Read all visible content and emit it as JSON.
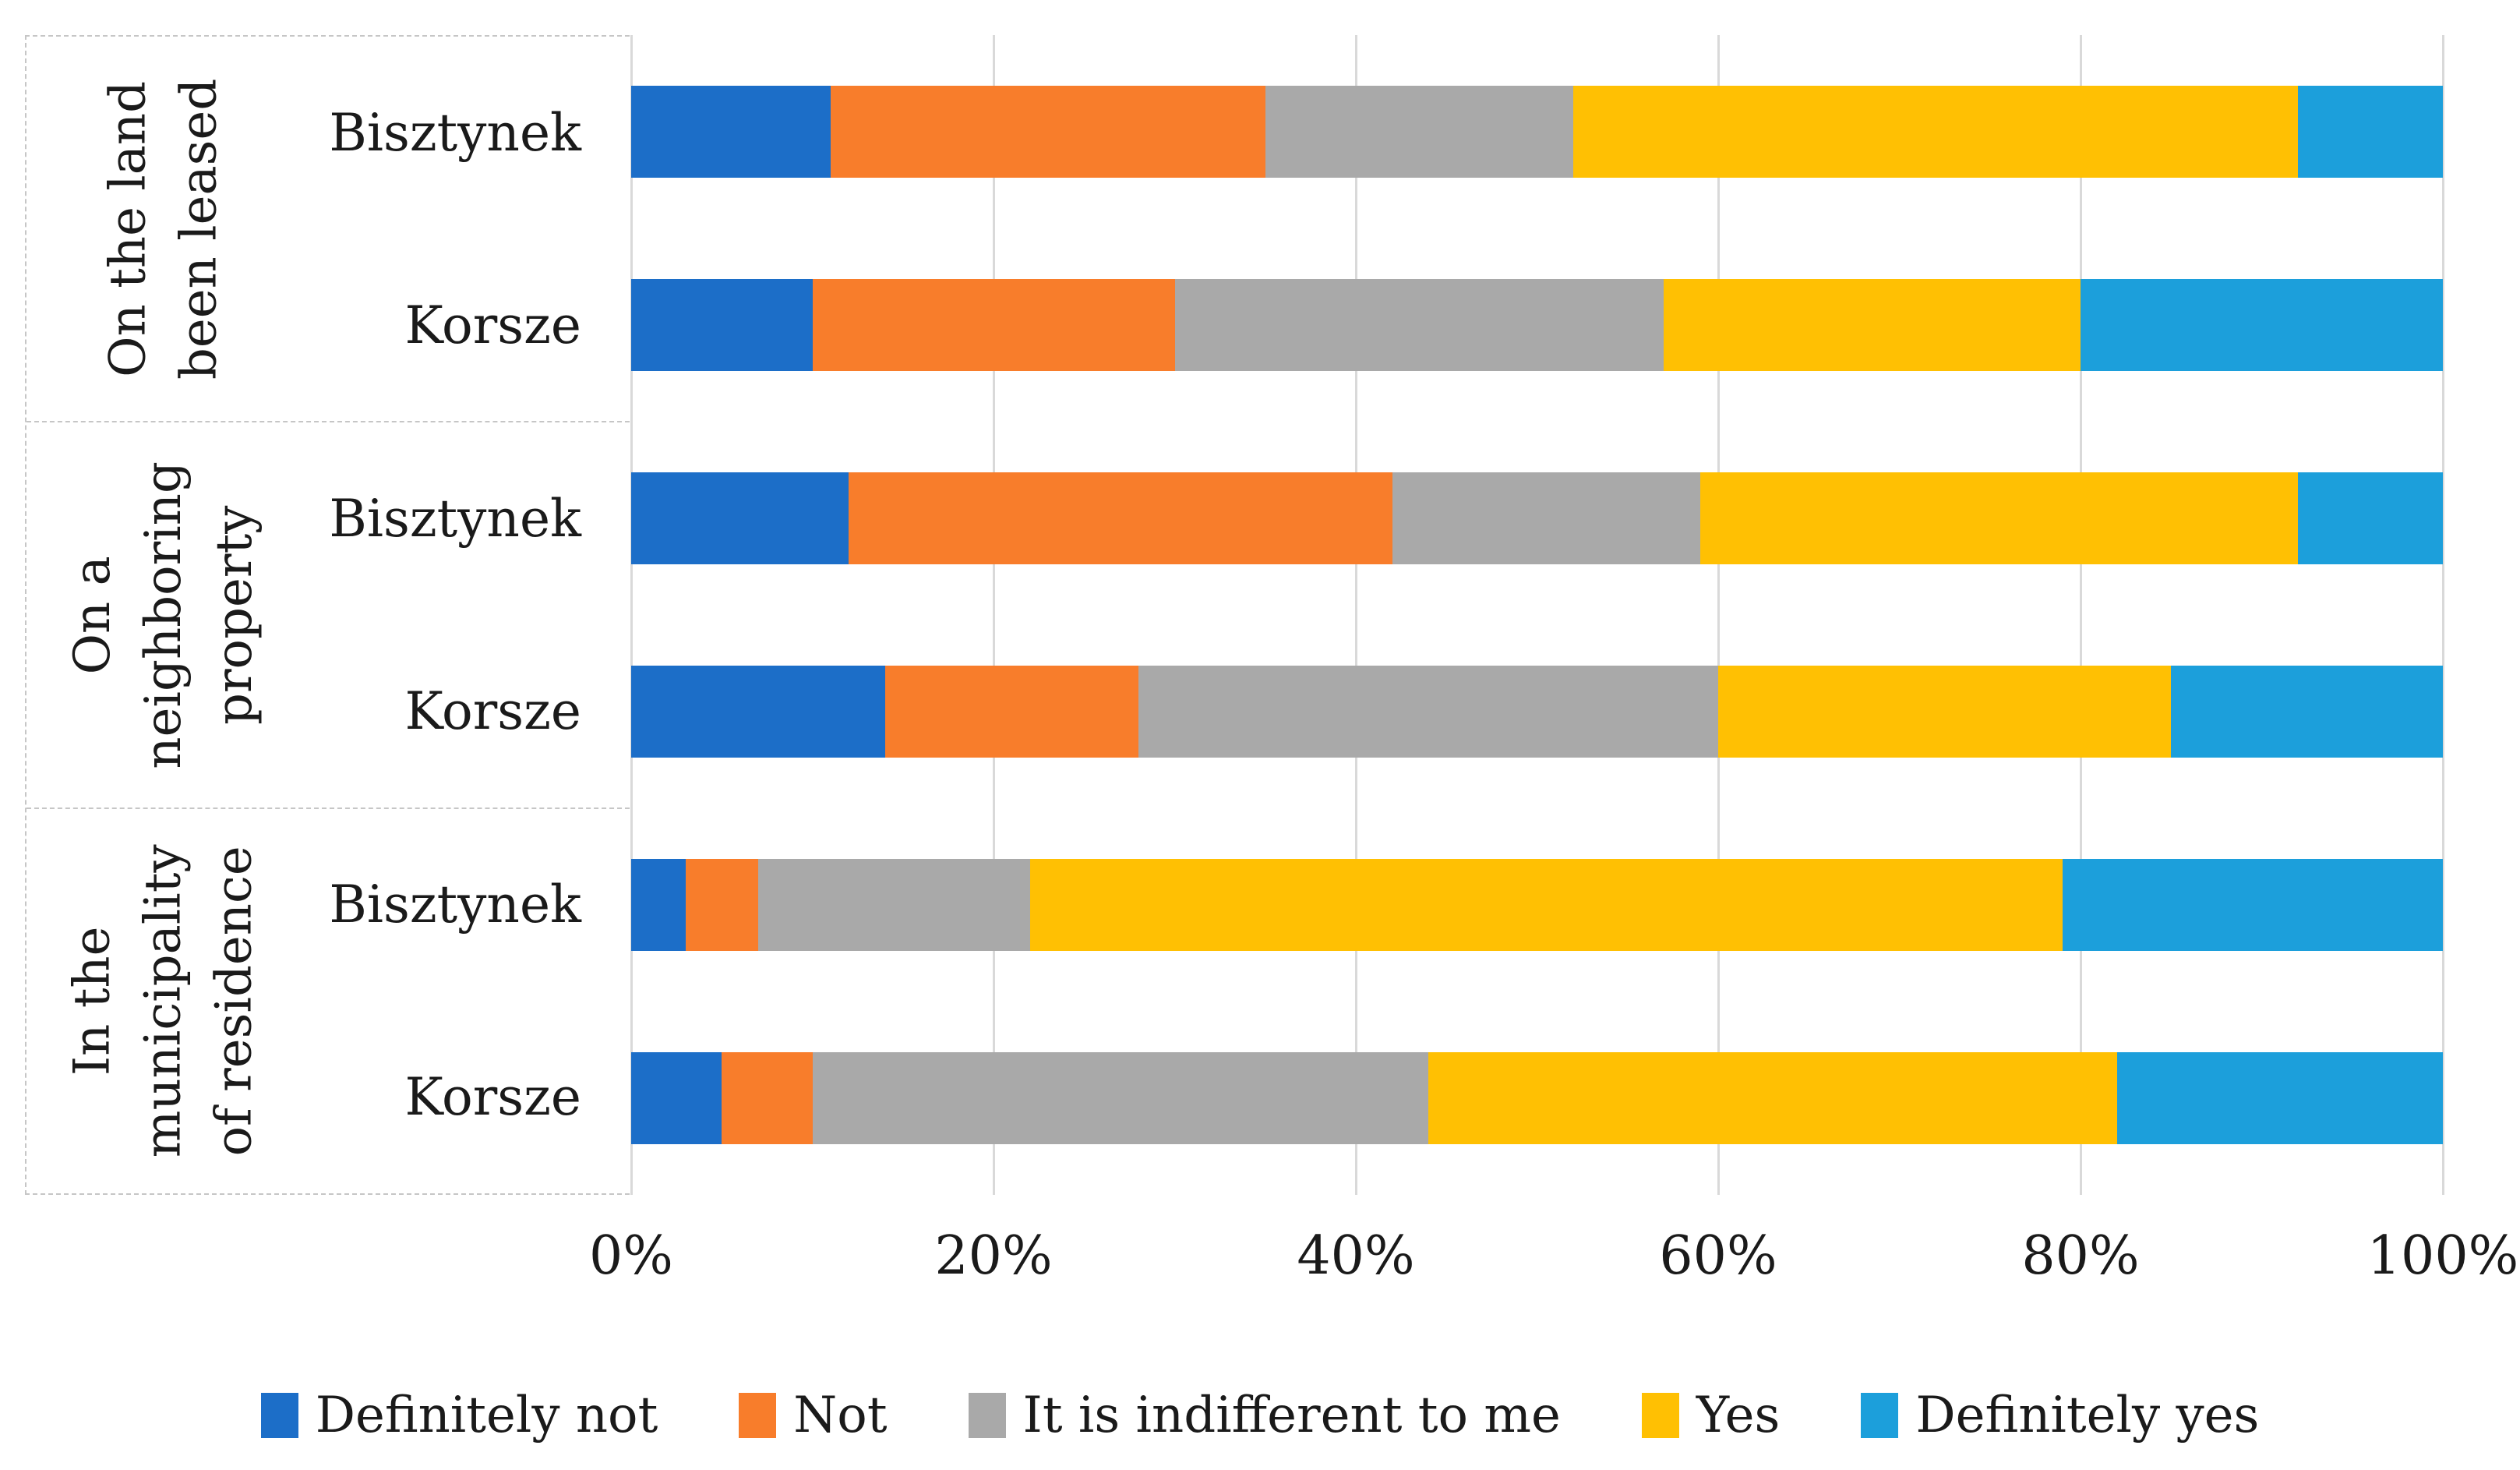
{
  "figure": {
    "background": "#FFFFFF",
    "gridline_color": "#D9D9D9",
    "panel_border_color": "#C6C6C6",
    "text_color": "#1A1A1A"
  },
  "chart_data": {
    "type": "bar",
    "subtype": "stacked-horizontal-100percent",
    "orientation": "horizontal",
    "title": "",
    "xlabel": "",
    "ylabel": "",
    "xlim": [
      0,
      100
    ],
    "x_ticks": [
      "0%",
      "20%",
      "40%",
      "60%",
      "80%",
      "100%"
    ],
    "x_tick_values": [
      0,
      20,
      40,
      60,
      80,
      100
    ],
    "grid": "vertical",
    "legend_position": "bottom",
    "series": [
      {
        "name": "Definitely not",
        "color": "#1C6EC8"
      },
      {
        "name": "Not",
        "color": "#F87D2B"
      },
      {
        "name": "It is indifferent to me",
        "color": "#A9A9A9"
      },
      {
        "name": "Yes",
        "color": "#FFC003"
      },
      {
        "name": "Definitely yes",
        "color": "#1C9FDB"
      }
    ],
    "groups": [
      {
        "label": "On the land been leased",
        "label_lines": [
          "On the land",
          "been leased"
        ],
        "rows": [
          {
            "category": "Bisztynek",
            "values": [
              11,
              24,
              17,
              40,
              8
            ]
          },
          {
            "category": "Korsze",
            "values": [
              10,
              20,
              27,
              23,
              20
            ]
          }
        ]
      },
      {
        "label": "On a neighboring property",
        "label_lines": [
          "On a",
          "neighboring",
          "property"
        ],
        "rows": [
          {
            "category": "Bisztynek",
            "values": [
              12,
              30,
              17,
              33,
              8
            ]
          },
          {
            "category": "Korsze",
            "values": [
              14,
              14,
              32,
              25,
              15
            ]
          }
        ]
      },
      {
        "label": "In the municipality of residence",
        "label_lines": [
          "In the",
          "municipality",
          "of residence"
        ],
        "rows": [
          {
            "category": "Bisztynek",
            "values": [
              3,
              4,
              15,
              57,
              21
            ]
          },
          {
            "category": "Korsze",
            "values": [
              5,
              5,
              34,
              38,
              18
            ]
          }
        ]
      }
    ]
  }
}
